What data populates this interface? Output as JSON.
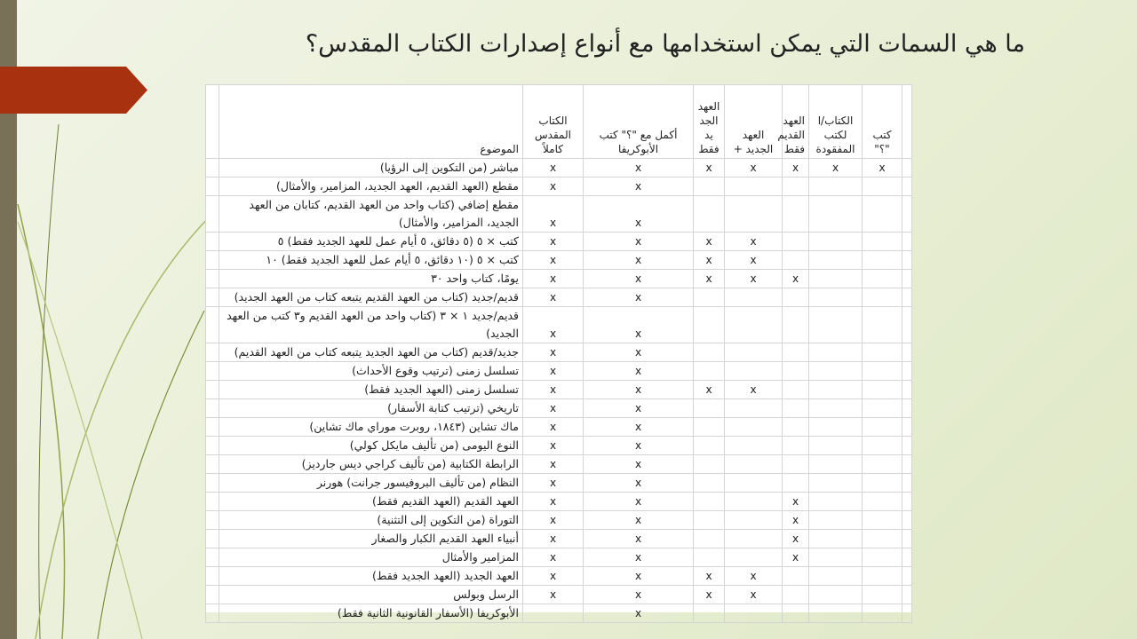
{
  "slide": {
    "title": "ما هي السمات التي يمكن استخدامها مع أنواع إصدارات الكتاب المقدس؟",
    "colors": {
      "background": "#e9efd6",
      "side_bar": "#787158",
      "arrow": "#a8320f",
      "deco_lines": "#8fa14a"
    }
  },
  "table": {
    "headers": [
      "الموضوع",
      "الكتاب المقدس كاملاً",
      "أكمل مع \"؟\" كتب الأبوكريفا",
      "العهد الجد يد فقط",
      "العهد الجديد +",
      "العهد القديم فقط",
      "الكتاب/ا لكتب المفقودة",
      "كتب \"؟\""
    ],
    "mark": "x",
    "rows": [
      {
        "topic": "مباشر (من التكوين إلى الرؤيا)",
        "marks": [
          true,
          true,
          true,
          true,
          true,
          true,
          true
        ]
      },
      {
        "topic": "مقطع (العهد القديم، العهد الجديد، المزامير، والأمثال)",
        "marks": [
          true,
          true,
          false,
          false,
          false,
          false,
          false
        ]
      },
      {
        "topic": "مقطع إضافي (كتاب واحد من العهد القديم، كتابان من العهد الجديد، المزامير، والأمثال)",
        "marks": [
          true,
          true,
          false,
          false,
          false,
          false,
          false
        ]
      },
      {
        "topic": "كتب × ٥ (٥ دقائق، ٥ أيام عمل للعهد الجديد فقط) ٥",
        "marks": [
          true,
          true,
          true,
          true,
          false,
          false,
          false
        ]
      },
      {
        "topic": "كتب × ٥ (١٠ دقائق، ٥ أيام عمل للعهد الجديد فقط) ١٠",
        "marks": [
          true,
          true,
          true,
          true,
          false,
          false,
          false
        ]
      },
      {
        "topic": "يومًا، كتاب واحد ٣٠",
        "marks": [
          true,
          true,
          true,
          true,
          true,
          false,
          false
        ]
      },
      {
        "topic": "قديم/جديد (كتاب من العهد القديم يتبعه كتاب من العهد الجديد)",
        "marks": [
          true,
          true,
          false,
          false,
          false,
          false,
          false
        ]
      },
      {
        "topic": "قديم/جديد ١ × ٣ (كتاب واحد من العهد القديم و٣ كتب من العهد الجديد)",
        "marks": [
          true,
          true,
          false,
          false,
          false,
          false,
          false
        ]
      },
      {
        "topic": "جديد/قديم (كتاب من العهد الجديد يتبعه كتاب من العهد القديم)",
        "marks": [
          true,
          true,
          false,
          false,
          false,
          false,
          false
        ]
      },
      {
        "topic": "تسلسل زمنى (ترتيب وقوع الأحداث)",
        "marks": [
          true,
          true,
          false,
          false,
          false,
          false,
          false
        ]
      },
      {
        "topic": "تسلسل زمنى (العهد الجديد فقط)",
        "marks": [
          true,
          true,
          true,
          true,
          false,
          false,
          false
        ]
      },
      {
        "topic": "تاريخي (ترتيب كتابة الأسفار)",
        "marks": [
          true,
          true,
          false,
          false,
          false,
          false,
          false
        ]
      },
      {
        "topic": "ماك تشاين (١٨٤٣، روبرت موراي ماك تشاين)",
        "marks": [
          true,
          true,
          false,
          false,
          false,
          false,
          false
        ]
      },
      {
        "topic": "النوع اليومى (من تأليف مايكل كولي)",
        "marks": [
          true,
          true,
          false,
          false,
          false,
          false,
          false
        ]
      },
      {
        "topic": "الرابطة الكتابية (من تأليف كراجي ديس جارديز)",
        "marks": [
          true,
          true,
          false,
          false,
          false,
          false,
          false
        ]
      },
      {
        "topic": "النظام (من تأليف البروفيسور جرانت) هورنر",
        "marks": [
          true,
          true,
          false,
          false,
          false,
          false,
          false
        ]
      },
      {
        "topic": "العهد القديم (العهد القديم فقط)",
        "marks": [
          true,
          true,
          false,
          false,
          true,
          false,
          false
        ]
      },
      {
        "topic": "التوراة (من التكوين إلى التثنية)",
        "marks": [
          true,
          true,
          false,
          false,
          true,
          false,
          false
        ]
      },
      {
        "topic": "أنبياء العهد القديم الكبار والصغار",
        "marks": [
          true,
          true,
          false,
          false,
          true,
          false,
          false
        ]
      },
      {
        "topic": "المزامير والأمثال",
        "marks": [
          true,
          true,
          false,
          false,
          true,
          false,
          false
        ]
      },
      {
        "topic": "العهد الجديد (العهد الجديد فقط)",
        "marks": [
          true,
          true,
          true,
          true,
          false,
          false,
          false
        ]
      },
      {
        "topic": "الرسل وبولس",
        "marks": [
          true,
          true,
          true,
          true,
          false,
          false,
          false
        ]
      },
      {
        "topic": "الأبوكريفا (الأسفار القانونية الثانية فقط)",
        "marks": [
          false,
          true,
          false,
          false,
          false,
          false,
          false
        ]
      }
    ]
  }
}
